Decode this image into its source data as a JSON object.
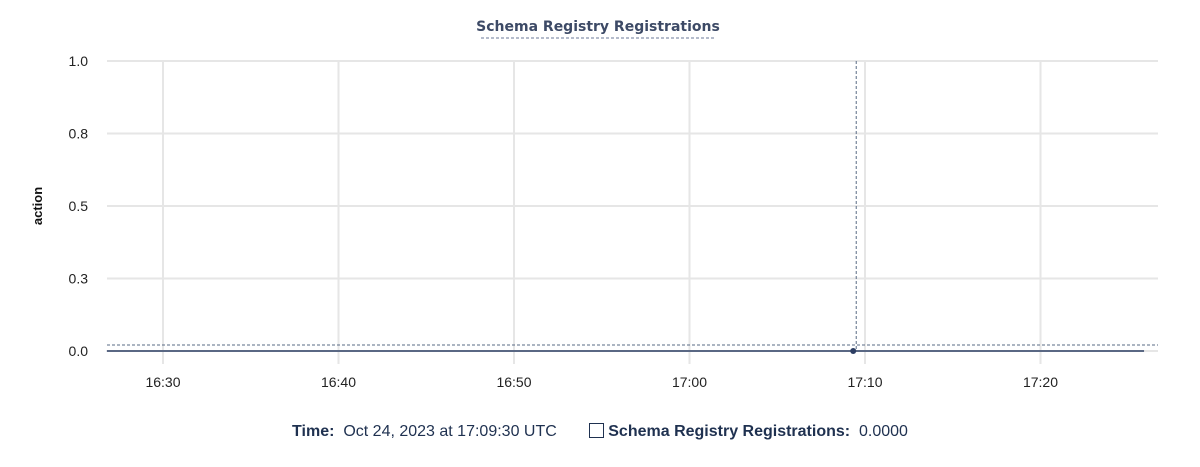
{
  "chart_data": {
    "type": "line",
    "title": "Schema Registry Registrations",
    "ylabel": "action",
    "xlabel": "",
    "ylim": [
      0,
      1
    ],
    "y_tick_labels": [
      "0.0",
      "0.3",
      "0.5",
      "0.8",
      "1.0"
    ],
    "x_tick_labels": [
      "16:30",
      "16:40",
      "16:50",
      "17:00",
      "17:10",
      "17:20"
    ],
    "xlim": [
      "16:26:48",
      "17:25:54"
    ],
    "grid": true,
    "series": [
      {
        "name": "Schema Registry Registrations",
        "color": "#2c3e63",
        "x": [
          "16:26:48",
          "17:25:54"
        ],
        "y": [
          0,
          0
        ]
      }
    ],
    "hover": {
      "x": "17:09:30",
      "y": 0
    }
  },
  "legend": {
    "time_label": "Time:",
    "time_value": "Oct 24, 2023 at 17:09:30 UTC",
    "series_label": "Schema Registry Registrations:",
    "series_value": "0.0000"
  }
}
